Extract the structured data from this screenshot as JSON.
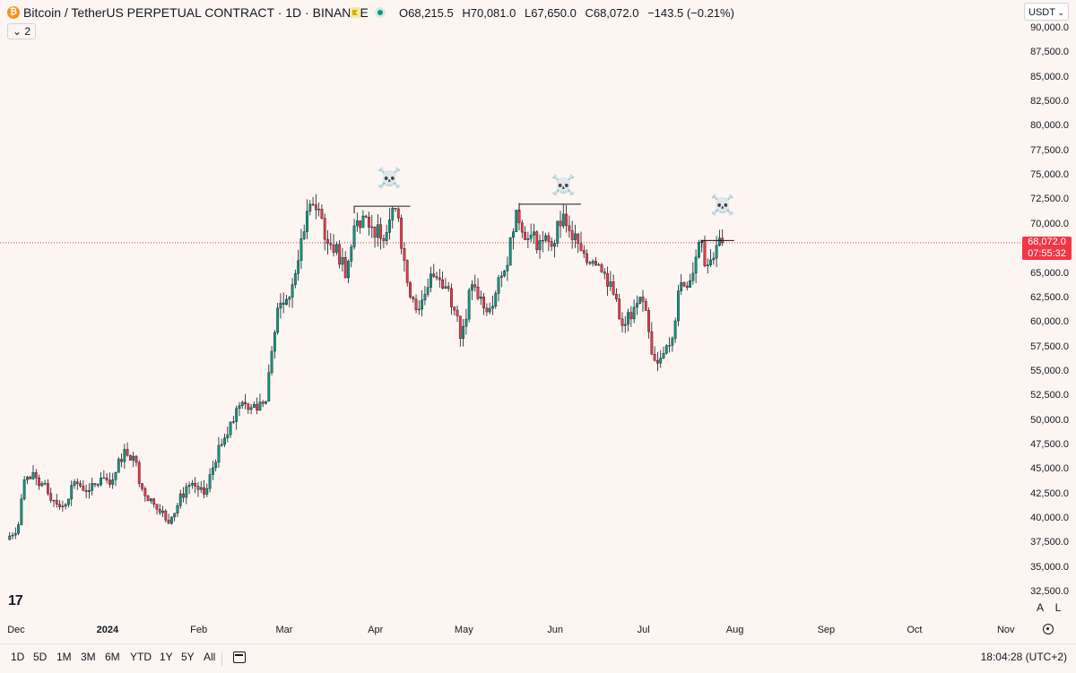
{
  "header": {
    "symbol_logo": "₿",
    "title": "Bitcoin / TetherUS PERPETUAL CONTRACT · 1D · BINANCE",
    "ohlc": {
      "o_label": "O",
      "o": "68,215.5",
      "h_label": "H",
      "h": "70,081.0",
      "l_label": "L",
      "l": "67,650.0",
      "c_label": "C",
      "c": "68,072.0",
      "change": "−143.5 (−0.21%)"
    },
    "collapse_label": "⌄ 2",
    "currency": "USDT"
  },
  "price_axis": {
    "labels": [
      "90,000.0",
      "87,500.0",
      "85,000.0",
      "82,500.0",
      "80,000.0",
      "77,500.0",
      "75,000.0",
      "72,500.0",
      "70,000.0",
      "67,500.0",
      "65,000.0",
      "62,500.0",
      "60,000.0",
      "57,500.0",
      "55,000.0",
      "52,500.0",
      "50,000.0",
      "47,500.0",
      "45,000.0",
      "42,500.0",
      "40,000.0",
      "37,500.0",
      "35,000.0",
      "32,500.0"
    ],
    "last_price": "68,072.0",
    "countdown": "07:55:32"
  },
  "time_axis": {
    "labels": [
      "Dec",
      "2024",
      "Feb",
      "Mar",
      "Apr",
      "May",
      "Jun",
      "Jul",
      "Aug",
      "Sep",
      "Oct",
      "Nov"
    ]
  },
  "toolbar": {
    "ranges": [
      "1D",
      "5D",
      "1M",
      "3M",
      "6M",
      "YTD",
      "1Y",
      "5Y",
      "All"
    ],
    "clock": "18:04:28 (UTC+2)",
    "auto_label": "A",
    "log_label": "L"
  },
  "annotations": {
    "glyph": "☠️"
  },
  "colors": {
    "up": "#089981",
    "down": "#f23645",
    "background": "#fdf5f1",
    "last_price": "#f23645"
  },
  "chart_data": {
    "type": "candlestick",
    "symbol": "Bitcoin / TetherUS PERPETUAL CONTRACT",
    "interval": "1D",
    "ylim": [
      31500,
      91000
    ],
    "last_price": 68072,
    "resistance_lines": [
      {
        "price": 71800,
        "from": "2024-03-26",
        "to": "2024-04-14"
      },
      {
        "price": 72000,
        "from": "2024-05-21",
        "to": "2024-06-11"
      },
      {
        "price": 68300,
        "from": "2024-07-22",
        "to": "2024-08-02"
      }
    ],
    "annotation_dates": [
      "2024-04-07",
      "2024-06-05",
      "2024-07-29"
    ],
    "closes": [
      [
        "2023-11-29",
        37800
      ],
      [
        "2023-12-03",
        39300
      ],
      [
        "2023-12-05",
        43900
      ],
      [
        "2023-12-09",
        44100
      ],
      [
        "2023-12-13",
        42500
      ],
      [
        "2023-12-18",
        41200
      ],
      [
        "2023-12-22",
        43700
      ],
      [
        "2023-12-27",
        42800
      ],
      [
        "2024-01-01",
        44100
      ],
      [
        "2024-01-04",
        43900
      ],
      [
        "2024-01-08",
        47000
      ],
      [
        "2024-01-11",
        46300
      ],
      [
        "2024-01-14",
        43000
      ],
      [
        "2024-01-18",
        41400
      ],
      [
        "2024-01-22",
        39800
      ],
      [
        "2024-01-24",
        40100
      ],
      [
        "2024-01-29",
        43200
      ],
      [
        "2024-02-02",
        42900
      ],
      [
        "2024-02-05",
        43000
      ],
      [
        "2024-02-09",
        47400
      ],
      [
        "2024-02-13",
        49800
      ],
      [
        "2024-02-17",
        51800
      ],
      [
        "2024-02-21",
        51600
      ],
      [
        "2024-02-25",
        51900
      ],
      [
        "2024-02-27",
        57000
      ],
      [
        "2024-02-29",
        61400
      ],
      [
        "2024-03-03",
        62300
      ],
      [
        "2024-03-05",
        63800
      ],
      [
        "2024-03-08",
        68500
      ],
      [
        "2024-03-11",
        72000
      ],
      [
        "2024-03-14",
        71500
      ],
      [
        "2024-03-17",
        68000
      ],
      [
        "2024-03-20",
        67900
      ],
      [
        "2024-03-23",
        64500
      ],
      [
        "2024-03-26",
        69800
      ],
      [
        "2024-03-29",
        70800
      ],
      [
        "2024-04-01",
        69700
      ],
      [
        "2024-04-04",
        68500
      ],
      [
        "2024-04-08",
        71600
      ],
      [
        "2024-04-10",
        70600
      ],
      [
        "2024-04-13",
        64000
      ],
      [
        "2024-04-17",
        61300
      ],
      [
        "2024-04-21",
        64900
      ],
      [
        "2024-04-24",
        64300
      ],
      [
        "2024-04-27",
        63400
      ],
      [
        "2024-04-30",
        60600
      ],
      [
        "2024-05-01",
        58300
      ],
      [
        "2024-05-05",
        63800
      ],
      [
        "2024-05-09",
        61400
      ],
      [
        "2024-05-13",
        62900
      ],
      [
        "2024-05-16",
        65200
      ],
      [
        "2024-05-20",
        71400
      ],
      [
        "2024-05-24",
        68500
      ],
      [
        "2024-05-28",
        68300
      ],
      [
        "2024-06-01",
        67700
      ],
      [
        "2024-06-05",
        71000
      ],
      [
        "2024-06-07",
        69300
      ],
      [
        "2024-06-11",
        67300
      ],
      [
        "2024-06-15",
        66200
      ],
      [
        "2024-06-18",
        65100
      ],
      [
        "2024-06-21",
        64100
      ],
      [
        "2024-06-24",
        60300
      ],
      [
        "2024-06-28",
        60300
      ],
      [
        "2024-07-02",
        62100
      ],
      [
        "2024-07-05",
        56700
      ],
      [
        "2024-07-08",
        56300
      ],
      [
        "2024-07-11",
        57600
      ],
      [
        "2024-07-15",
        64000
      ],
      [
        "2024-07-18",
        64200
      ],
      [
        "2024-07-21",
        68100
      ],
      [
        "2024-07-24",
        65800
      ],
      [
        "2024-07-27",
        67800
      ],
      [
        "2024-07-29",
        68072
      ]
    ]
  }
}
